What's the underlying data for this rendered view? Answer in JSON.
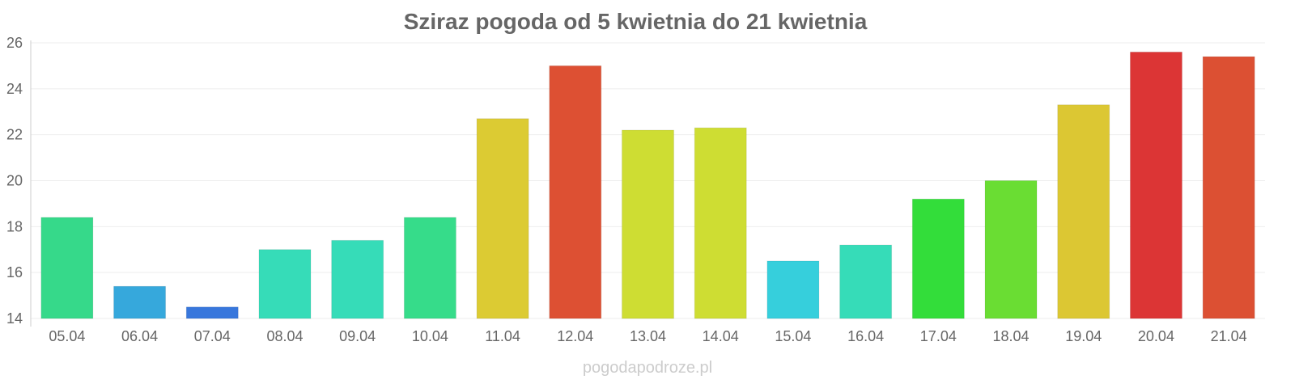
{
  "chart_data": {
    "type": "bar",
    "title": "Sziraz pogoda od 5 kwietnia do 21 kwietnia",
    "xlabel": "",
    "ylabel": "",
    "ylim": [
      14,
      26
    ],
    "yticks": [
      14,
      16,
      18,
      20,
      22,
      24,
      26
    ],
    "grid": true,
    "categories": [
      "05.04",
      "06.04",
      "07.04",
      "08.04",
      "09.04",
      "10.04",
      "11.04",
      "12.04",
      "13.04",
      "14.04",
      "15.04",
      "16.04",
      "17.04",
      "18.04",
      "19.04",
      "20.04",
      "21.04"
    ],
    "values": [
      18.4,
      15.4,
      14.5,
      17.0,
      17.4,
      18.4,
      22.7,
      25.0,
      22.2,
      22.3,
      16.5,
      17.2,
      19.2,
      20.0,
      23.3,
      25.6,
      25.4
    ],
    "colors": [
      "#36d98a",
      "#36a8dc",
      "#3877dc",
      "#36dcb8",
      "#36dcb8",
      "#36dc8a",
      "#dccb33",
      "#dd5033",
      "#cedd33",
      "#cedd33",
      "#36cfdc",
      "#36dcb8",
      "#33dd3a",
      "#6add33",
      "#dcc733",
      "#dc3535",
      "#dc5033"
    ]
  },
  "watermark": "pogodapodroze.pl"
}
